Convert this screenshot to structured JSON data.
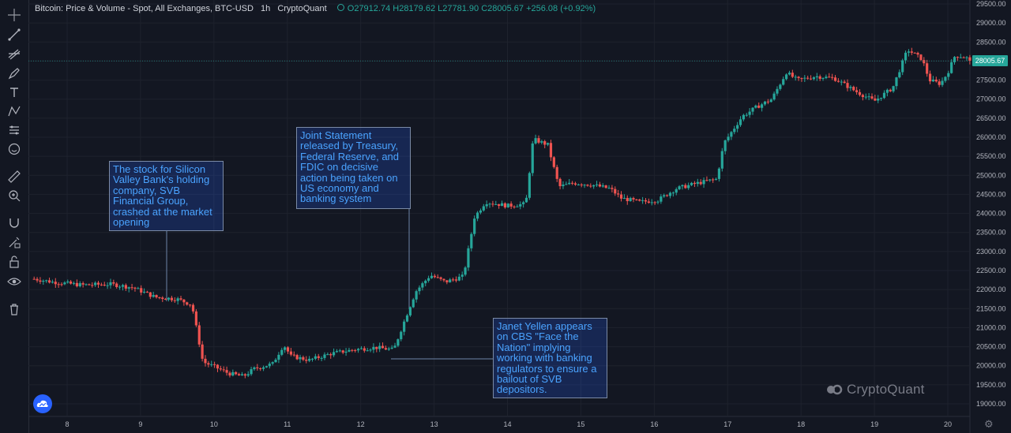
{
  "header": {
    "title": "Bitcoin: Price & Volume - Spot, All Exchanges, BTC-USD",
    "interval": "1h",
    "source": "CryptoQuant",
    "ohlc": "O27912.74 H28179.62 L27781.90 C28005.67 +256.08 (+0.92%)"
  },
  "price_tag": "28005.67",
  "watermark": "CryptoQuant",
  "colors": {
    "up": "#26a69a",
    "down": "#ef5350",
    "background": "#131722",
    "grid": "#1e222d",
    "annotation_text": "#4aa3ff"
  },
  "toolbar_icons": [
    "crosshair-icon",
    "trend-line-icon",
    "pitchfork-icon",
    "brush-icon",
    "text-icon",
    "pattern-icon",
    "forecast-icon",
    "emoji-icon",
    "ruler-icon",
    "zoom-icon",
    "magnet-icon",
    "lock-drawing-icon",
    "lock-icon",
    "eye-icon",
    "trash-icon"
  ],
  "annotations": [
    {
      "text": "The stock for Silicon Valley Bank's holding company, SVB Financial Group, crashed at the market opening"
    },
    {
      "text": "Joint Statement released by Treasury, Federal Reserve, and FDIC on decisive action being taken on US economy and banking system"
    },
    {
      "text": "Janet Yellen appears on CBS \"Face the Nation\" implying working with banking regulators to ensure a bailout of SVB depositors."
    }
  ],
  "chart_data": {
    "type": "candlestick",
    "title": "Bitcoin: Price & Volume - Spot, All Exchanges, BTC-USD",
    "x_ticks": [
      "8",
      "9",
      "10",
      "11",
      "12",
      "13",
      "14",
      "15",
      "16",
      "17",
      "18",
      "19",
      "20"
    ],
    "y_ticks": [
      "19000.00",
      "19500.00",
      "20000.00",
      "20500.00",
      "21000.00",
      "21500.00",
      "22000.00",
      "22500.00",
      "23000.00",
      "23500.00",
      "24000.00",
      "24500.00",
      "25000.00",
      "25500.00",
      "26000.00",
      "26500.00",
      "27000.00",
      "27500.00",
      "28000.00",
      "28500.00",
      "29000.00",
      "29500.00"
    ],
    "ylim": [
      18800,
      29600
    ],
    "last_price": 28005.67,
    "path": [
      [
        7.55,
        22280
      ],
      [
        7.8,
        22200
      ],
      [
        8.2,
        22120
      ],
      [
        8.6,
        22140
      ],
      [
        8.9,
        22050
      ],
      [
        9.2,
        21800
      ],
      [
        9.5,
        21750
      ],
      [
        9.7,
        21600
      ],
      [
        9.85,
        20100
      ],
      [
        10.0,
        19980
      ],
      [
        10.2,
        19800
      ],
      [
        10.4,
        19720
      ],
      [
        10.55,
        19920
      ],
      [
        10.8,
        20050
      ],
      [
        10.95,
        20550
      ],
      [
        11.05,
        20250
      ],
      [
        11.3,
        20150
      ],
      [
        11.6,
        20320
      ],
      [
        11.9,
        20420
      ],
      [
        12.2,
        20480
      ],
      [
        12.45,
        20420
      ],
      [
        12.6,
        21200
      ],
      [
        12.75,
        21950
      ],
      [
        12.95,
        22380
      ],
      [
        13.15,
        22200
      ],
      [
        13.4,
        22350
      ],
      [
        13.55,
        23900
      ],
      [
        13.7,
        24300
      ],
      [
        14.0,
        24200
      ],
      [
        14.25,
        24250
      ],
      [
        14.35,
        25950
      ],
      [
        14.55,
        25800
      ],
      [
        14.7,
        24700
      ],
      [
        14.9,
        24800
      ],
      [
        15.15,
        24750
      ],
      [
        15.4,
        24650
      ],
      [
        15.55,
        24400
      ],
      [
        15.8,
        24300
      ],
      [
        16.05,
        24350
      ],
      [
        16.3,
        24650
      ],
      [
        16.6,
        24800
      ],
      [
        16.85,
        24900
      ],
      [
        16.95,
        25850
      ],
      [
        17.2,
        26550
      ],
      [
        17.4,
        26800
      ],
      [
        17.6,
        27000
      ],
      [
        17.8,
        27700
      ],
      [
        17.95,
        27500
      ],
      [
        18.2,
        27600
      ],
      [
        18.45,
        27550
      ],
      [
        18.75,
        27200
      ],
      [
        19.0,
        26950
      ],
      [
        19.25,
        27300
      ],
      [
        19.45,
        28300
      ],
      [
        19.65,
        28050
      ],
      [
        19.75,
        27500
      ],
      [
        19.9,
        27400
      ],
      [
        20.0,
        27700
      ],
      [
        20.1,
        28150
      ],
      [
        20.25,
        28100
      ],
      [
        20.33,
        27900
      ]
    ]
  }
}
